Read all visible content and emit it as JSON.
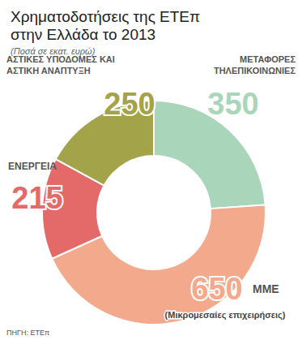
{
  "chart_data": {
    "type": "pie",
    "title": "Χρηματοδοτήσεις της ΕΤΕπ\nστην Ελλάδα το 2013",
    "subtitle": "(Ποσά σε εκατ. ευρώ)",
    "categories": [
      "ΜΕΤΑΦΟΡΕΣ\nΤΗΛΕΠΙΚΟΙΝΩΝΙΕΣ",
      "ΜΜΕ",
      "ΕΝΕΡΓΕΙΑ",
      "ΑΣΤΙΚΕΣ ΥΠΟΔΟΜΕΣ ΚΑΙ\nΑΣΤΙΚΗ ΑΝΑΠΤΥΞΗ"
    ],
    "values": [
      350,
      650,
      215,
      250
    ],
    "colors": [
      "#a9d6bb",
      "#f2a98c",
      "#e46a6a",
      "#a3a34a"
    ],
    "data_labels": true,
    "annotations": [
      "(Μικρομεσαίες επιχειρήσεις)"
    ],
    "source": "ΠΗΓΗ: ΕΤΕπ"
  }
}
